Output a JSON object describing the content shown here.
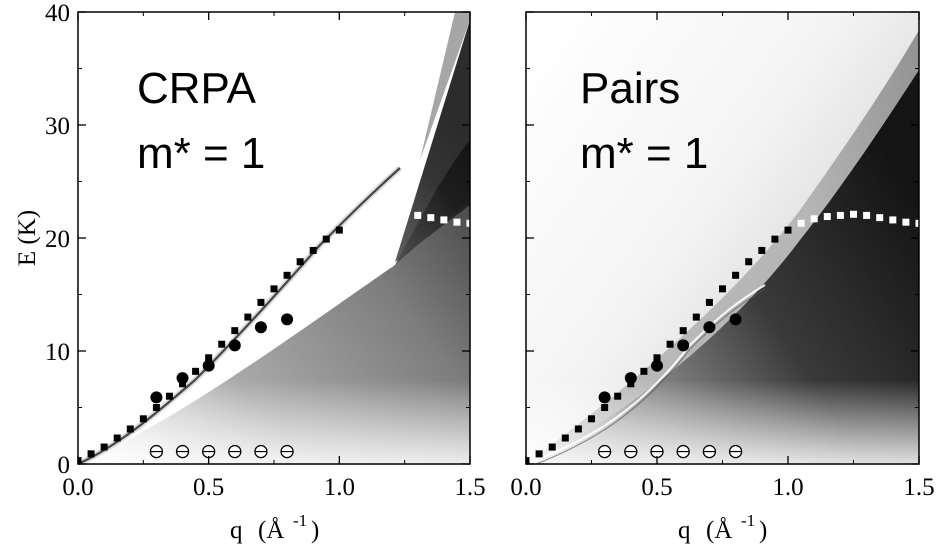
{
  "chart_data": [
    {
      "type": "heatmap",
      "panel_label": "CRPA",
      "panel_sublabel": "m* = 1",
      "xlabel": "q",
      "xlabel_unit": "(Å",
      "xlabel_exp": "-1",
      "xlabel_close": ")",
      "ylabel": "E (K)",
      "xlim": [
        0.0,
        1.5
      ],
      "ylim": [
        0,
        40
      ],
      "xticks": [
        "0.0",
        "0.5",
        "1.0",
        "1.5"
      ],
      "yticks": [
        "0",
        "10",
        "20",
        "30",
        "40"
      ],
      "squares": {
        "x": [
          0.0,
          0.05,
          0.1,
          0.15,
          0.2,
          0.25,
          0.3,
          0.35,
          0.4,
          0.45,
          0.5,
          0.55,
          0.6,
          0.65,
          0.7,
          0.75,
          0.8,
          0.85,
          0.9,
          0.95,
          1.0,
          1.05,
          1.1,
          1.15,
          1.2,
          1.25,
          1.3,
          1.35,
          1.4,
          1.45,
          1.5
        ],
        "y": [
          0.3,
          0.9,
          1.5,
          2.3,
          3.1,
          4.0,
          5.0,
          6.0,
          7.1,
          8.2,
          9.4,
          10.6,
          11.8,
          13.0,
          14.3,
          15.5,
          16.7,
          17.9,
          18.9,
          19.9,
          20.7,
          21.3,
          21.7,
          21.9,
          22.0,
          22.1,
          22.0,
          21.8,
          21.6,
          21.4,
          21.3
        ],
        "white_from_x": 1.05
      },
      "filled_circles": {
        "x": [
          0.3,
          0.4,
          0.5,
          0.6,
          0.7,
          0.8
        ],
        "y": [
          5.9,
          7.6,
          8.7,
          10.5,
          12.1,
          12.8
        ]
      },
      "open_circles": {
        "x": [
          0.3,
          0.4,
          0.5,
          0.6,
          0.7,
          0.8
        ],
        "y": [
          1.1,
          1.1,
          1.1,
          1.1,
          1.1,
          1.1
        ]
      }
    },
    {
      "type": "heatmap",
      "panel_label": "Pairs",
      "panel_sublabel": "m* = 1",
      "xlabel": "q",
      "xlabel_unit": "(Å",
      "xlabel_exp": "-1",
      "xlabel_close": ")",
      "xlim": [
        0.0,
        1.5
      ],
      "ylim": [
        0,
        40
      ],
      "xticks": [
        "0.0",
        "0.5",
        "1.0",
        "1.5"
      ],
      "squares": {
        "x": [
          0.0,
          0.05,
          0.1,
          0.15,
          0.2,
          0.25,
          0.3,
          0.35,
          0.4,
          0.45,
          0.5,
          0.55,
          0.6,
          0.65,
          0.7,
          0.75,
          0.8,
          0.85,
          0.9,
          0.95,
          1.0,
          1.05,
          1.1,
          1.15,
          1.2,
          1.25,
          1.3,
          1.35,
          1.4,
          1.45,
          1.5
        ],
        "y": [
          0.3,
          0.9,
          1.5,
          2.3,
          3.1,
          4.0,
          5.0,
          6.0,
          7.1,
          8.2,
          9.4,
          10.6,
          11.8,
          13.0,
          14.3,
          15.5,
          16.7,
          17.9,
          18.9,
          19.9,
          20.7,
          21.3,
          21.7,
          21.9,
          22.0,
          22.1,
          22.0,
          21.8,
          21.6,
          21.4,
          21.3
        ],
        "white_from_x": 1.05
      },
      "filled_circles": {
        "x": [
          0.3,
          0.4,
          0.5,
          0.6,
          0.7,
          0.8
        ],
        "y": [
          5.9,
          7.6,
          8.7,
          10.5,
          12.1,
          12.8
        ]
      },
      "open_circles": {
        "x": [
          0.3,
          0.4,
          0.5,
          0.6,
          0.7,
          0.8
        ],
        "y": [
          1.1,
          1.1,
          1.1,
          1.1,
          1.1,
          1.1
        ]
      }
    }
  ]
}
